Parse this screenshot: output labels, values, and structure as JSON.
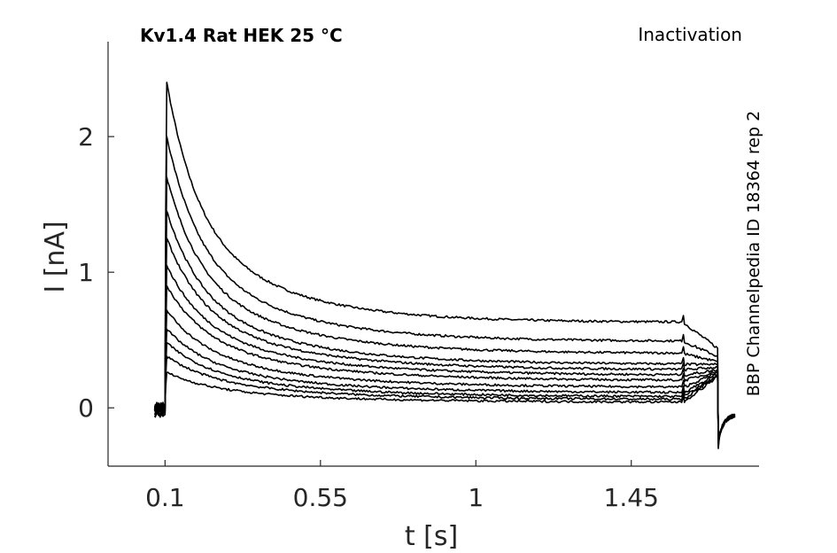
{
  "chart_data": {
    "type": "line",
    "title": "Kv1.4  Rat  HEK  25 °C",
    "annotation_right": "Inactivation",
    "side_label": "BBP Channelpedia ID 18364 rep 2",
    "xlabel": "t [s]",
    "ylabel": "I [nA]",
    "xlim": [
      -0.065,
      1.82
    ],
    "ylim": [
      -0.43,
      2.7
    ],
    "xticks": [
      0.1,
      0.55,
      1,
      1.45
    ],
    "xtick_labels": [
      "0.1",
      "0.55",
      "1",
      "1.45"
    ],
    "yticks": [
      0,
      1,
      2
    ],
    "ytick_labels": [
      "0",
      "1",
      "2"
    ],
    "grid": false,
    "line_color": "#000000",
    "protocol": {
      "t_on": 0.1,
      "t_step_end": 1.6,
      "t_end": 1.7,
      "t_start": 0.07
    },
    "series": [
      {
        "peak": 2.4,
        "steady": 0.63,
        "tail": 0.44,
        "pre": 0.0
      },
      {
        "peak": 2.0,
        "steady": 0.49,
        "tail": 0.38,
        "pre": 0.02
      },
      {
        "peak": 1.7,
        "steady": 0.4,
        "tail": 0.34,
        "pre": -0.02
      },
      {
        "peak": 1.45,
        "steady": 0.32,
        "tail": 0.32,
        "pre": 0.01
      },
      {
        "peak": 1.25,
        "steady": 0.28,
        "tail": 0.3,
        "pre": -0.03
      },
      {
        "peak": 1.05,
        "steady": 0.24,
        "tail": 0.28,
        "pre": 0.0
      },
      {
        "peak": 0.9,
        "steady": 0.2,
        "tail": 0.27,
        "pre": -0.05
      },
      {
        "peak": 0.72,
        "steady": 0.15,
        "tail": 0.26,
        "pre": 0.01
      },
      {
        "peak": 0.58,
        "steady": 0.11,
        "tail": 0.25,
        "pre": -0.02
      },
      {
        "peak": 0.48,
        "steady": 0.08,
        "tail": 0.24,
        "pre": 0.0
      },
      {
        "peak": 0.38,
        "steady": 0.06,
        "tail": 0.24,
        "pre": -0.04
      },
      {
        "peak": 0.26,
        "steady": 0.04,
        "tail": 0.23,
        "pre": 0.02
      }
    ]
  }
}
